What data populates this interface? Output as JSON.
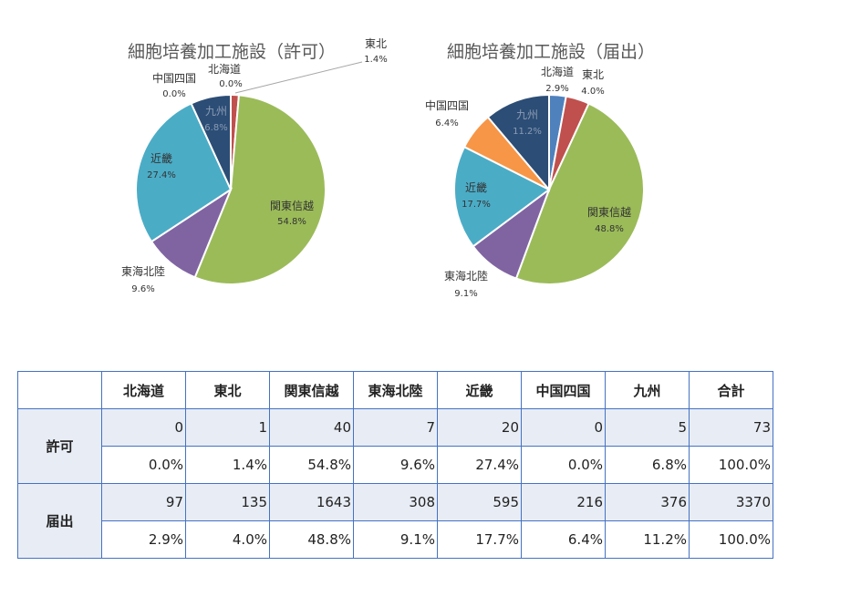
{
  "chart_data": [
    {
      "type": "pie",
      "title": "細胞培養加工施設（許可）",
      "categories": [
        "北海道",
        "東北",
        "関東信越",
        "東海北陸",
        "近畿",
        "中国四国",
        "九州"
      ],
      "values": [
        0,
        1,
        40,
        7,
        20,
        0,
        5
      ],
      "percent_labels": [
        "0.0%",
        "1.4%",
        "54.8%",
        "9.6%",
        "27.4%",
        "0.0%",
        "6.8%"
      ],
      "colors": [
        "#4f81bd",
        "#c0504d",
        "#9bbb59",
        "#8064a2",
        "#4bacc6",
        "#f79646",
        "#2c4d75"
      ]
    },
    {
      "type": "pie",
      "title": "細胞培養加工施設（届出）",
      "categories": [
        "北海道",
        "東北",
        "関東信越",
        "東海北陸",
        "近畿",
        "中国四国",
        "九州"
      ],
      "values": [
        97,
        135,
        1643,
        308,
        595,
        216,
        376
      ],
      "percent_labels": [
        "2.9%",
        "4.0%",
        "48.8%",
        "9.1%",
        "17.7%",
        "6.4%",
        "11.2%"
      ],
      "colors": [
        "#4f81bd",
        "#c0504d",
        "#9bbb59",
        "#8064a2",
        "#4bacc6",
        "#f79646",
        "#2c4d75"
      ]
    }
  ],
  "table": {
    "headers": [
      "北海道",
      "東北",
      "関東信越",
      "東海北陸",
      "近畿",
      "中国四国",
      "九州",
      "合計"
    ],
    "rows": [
      {
        "label": "許可",
        "counts": [
          "0",
          "1",
          "40",
          "7",
          "20",
          "0",
          "5",
          "73"
        ],
        "percents": [
          "0.0%",
          "1.4%",
          "54.8%",
          "9.6%",
          "27.4%",
          "0.0%",
          "6.8%",
          "100.0%"
        ]
      },
      {
        "label": "届出",
        "counts": [
          "97",
          "135",
          "1643",
          "308",
          "595",
          "216",
          "376",
          "3370"
        ],
        "percents": [
          "2.9%",
          "4.0%",
          "48.8%",
          "9.1%",
          "17.7%",
          "6.4%",
          "11.2%",
          "100.0%"
        ]
      }
    ]
  }
}
